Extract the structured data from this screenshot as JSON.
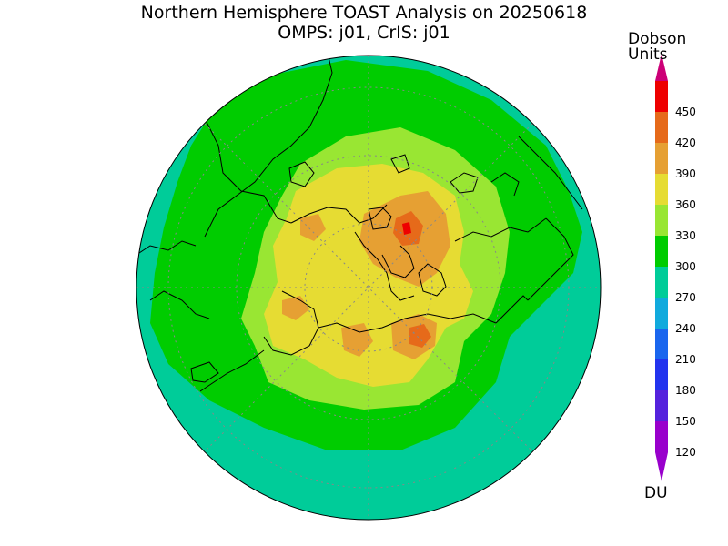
{
  "title": {
    "line1": "Northern Hemisphere TOAST Analysis on 20250618",
    "line2": "OMPS: j01, CrIS: j01"
  },
  "legend": {
    "title_line1": "Dobson",
    "title_line2": "Units",
    "unit": "DU",
    "levels": [
      120,
      150,
      180,
      210,
      240,
      270,
      300,
      330,
      360,
      390,
      420,
      450
    ],
    "bins": [
      {
        "color": "#9900cc"
      },
      {
        "color": "#5522dd"
      },
      {
        "color": "#2233ee"
      },
      {
        "color": "#1a66ee"
      },
      {
        "color": "#11aadd"
      },
      {
        "color": "#00cc99"
      },
      {
        "color": "#00cc00"
      },
      {
        "color": "#99e633"
      },
      {
        "color": "#e6dc33"
      },
      {
        "color": "#e6a033"
      },
      {
        "color": "#e66a1a"
      },
      {
        "color": "#ee0000"
      }
    ],
    "below_color": "#9900cc",
    "above_color": "#cc0077"
  },
  "map": {
    "projection": "north-polar-stereographic",
    "colors": {
      "band_240_270": "#00cc99",
      "band_270_300": "#00cc00",
      "band_300_330": "#99e633",
      "band_330_360": "#e6dc33",
      "band_360_390": "#e6a033",
      "band_390_420": "#e66a1a",
      "band_420_450": "#ee0000",
      "coastline": "#000000",
      "grid": "#888888"
    }
  }
}
